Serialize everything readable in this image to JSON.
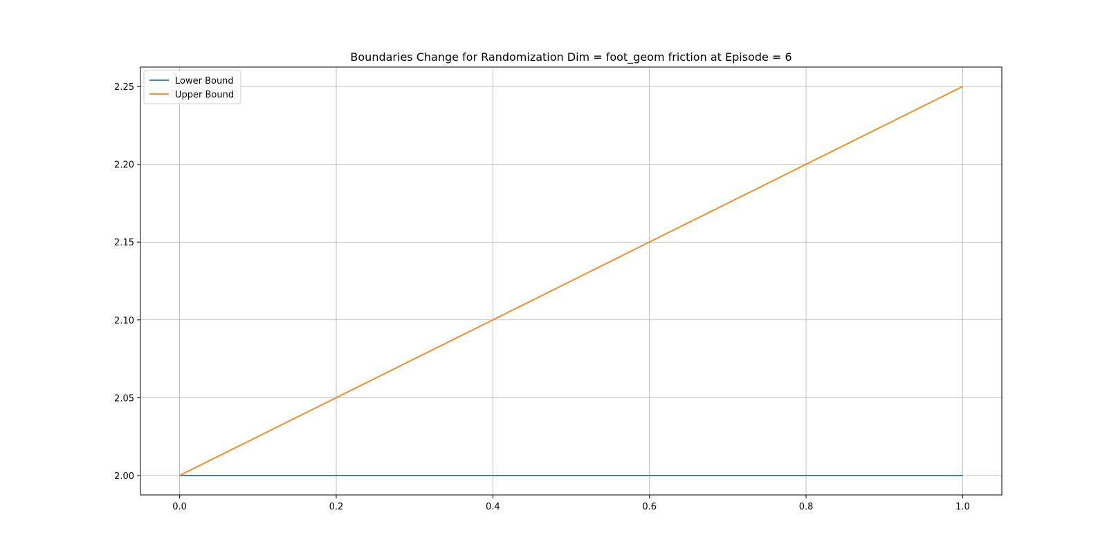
{
  "chart_data": {
    "type": "line",
    "title": "Boundaries Change for Randomization Dim = foot_geom friction at Episode = 6",
    "xlabel": "",
    "ylabel": "",
    "x": [
      0.0,
      1.0
    ],
    "xlim": [
      -0.05,
      1.05
    ],
    "ylim": [
      1.9875,
      2.2625
    ],
    "xticks": [
      0.0,
      0.2,
      0.4,
      0.6,
      0.8,
      1.0
    ],
    "xtick_labels": [
      "0.0",
      "0.2",
      "0.4",
      "0.6",
      "0.8",
      "1.0"
    ],
    "yticks": [
      2.0,
      2.05,
      2.1,
      2.15,
      2.2,
      2.25
    ],
    "ytick_labels": [
      "2.00",
      "2.05",
      "2.10",
      "2.15",
      "2.20",
      "2.25"
    ],
    "grid": true,
    "legend_position": "upper-left",
    "series": [
      {
        "name": "Lower Bound",
        "color": "#1f77b4",
        "values": [
          2.0,
          2.0
        ]
      },
      {
        "name": "Upper Bound",
        "color": "#ff7f0e",
        "values": [
          2.0,
          2.25
        ]
      }
    ]
  }
}
